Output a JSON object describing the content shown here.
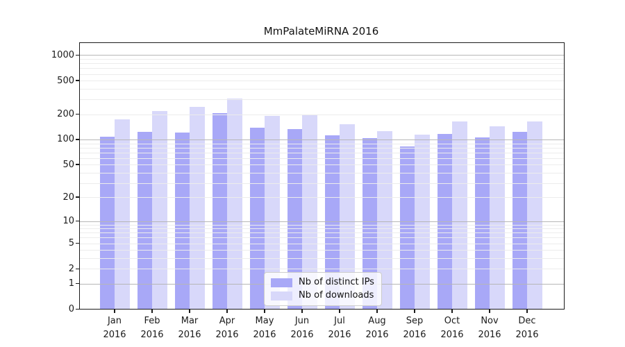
{
  "chart_data": {
    "type": "bar",
    "title": "MmPalateMiRNA 2016",
    "categories": [
      "Jan",
      "Feb",
      "Mar",
      "Apr",
      "May",
      "Jun",
      "Jul",
      "Aug",
      "Sep",
      "Oct",
      "Nov",
      "Dec"
    ],
    "year_label": "2016",
    "series": [
      {
        "name": "Nb of distinct IPs",
        "color": "#a8a8f7",
        "values": [
          108,
          124,
          121,
          204,
          138,
          133,
          112,
          104,
          83,
          117,
          106,
          123
        ]
      },
      {
        "name": "Nb of downloads",
        "color": "#d8d8fa",
        "values": [
          175,
          217,
          246,
          307,
          189,
          198,
          153,
          125,
          114,
          165,
          144,
          163
        ]
      }
    ],
    "y_axis": {
      "scale": "log1p",
      "ticks": [
        0,
        1,
        2,
        5,
        10,
        20,
        50,
        100,
        200,
        500,
        1000
      ],
      "top_value": 1390
    },
    "x_axis": {
      "tick_label_format": "month-over-year"
    },
    "grid": {
      "enabled": true,
      "major_values": [
        1,
        10,
        100,
        1000
      ],
      "major_color": "#b6b6b6",
      "minor_color": "#ececec",
      "drawn_above_bars": true
    },
    "legend": {
      "position": "lower-center"
    },
    "colors": {
      "background": "#ffffff",
      "spine": "#1a1a1a",
      "tick_text": "#1a1a1a"
    }
  }
}
